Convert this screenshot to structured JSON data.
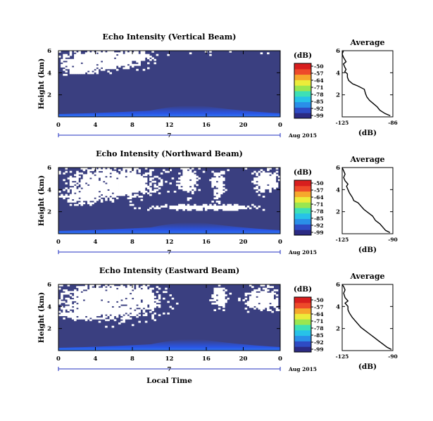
{
  "chart_data": [
    {
      "type": "heatmap",
      "title": "Echo Intensity (Vertical Beam)",
      "xlabel": "",
      "ylabel": "Height (km)",
      "x_ticks": [
        "0",
        "4",
        "8",
        "12",
        "16",
        "20",
        "0"
      ],
      "y_ticks": [
        "2",
        "4",
        "6"
      ],
      "xlim": [
        0,
        24
      ],
      "ylim": [
        0,
        6
      ],
      "date_label": "7",
      "date_suffix": "Aug 2015",
      "colorbar": {
        "title": "(dB)",
        "ticks": [
          "-50",
          "-57",
          "-64",
          "-71",
          "-78",
          "-85",
          "-92",
          "-99"
        ]
      },
      "average_profile": {
        "title": "Average",
        "xlabel": "(dB)",
        "x_ticks": [
          "-125",
          "-86"
        ],
        "y_ticks": [
          "2",
          "4",
          "6"
        ],
        "xlim": [
          -125,
          -86
        ],
        "ylim": [
          0,
          6
        ],
        "points": [
          [
            -88,
            0.1
          ],
          [
            -92,
            0.3
          ],
          [
            -96,
            0.6
          ],
          [
            -98,
            0.9
          ],
          [
            -101,
            1.2
          ],
          [
            -104,
            1.5
          ],
          [
            -106,
            1.8
          ],
          [
            -107,
            2.1
          ],
          [
            -108,
            2.5
          ],
          [
            -113,
            2.8
          ],
          [
            -117,
            3.0
          ],
          [
            -120,
            3.3
          ],
          [
            -121,
            3.6
          ],
          [
            -121,
            3.9
          ],
          [
            -123,
            4.1
          ],
          [
            -122,
            4.3
          ],
          [
            -123,
            4.5
          ],
          [
            -124,
            4.8
          ],
          [
            -122,
            5.0
          ],
          [
            -124,
            5.4
          ],
          [
            -125,
            5.7
          ],
          [
            -124,
            6.0
          ]
        ]
      }
    },
    {
      "type": "heatmap",
      "title": "Echo Intensity (Northward Beam)",
      "xlabel": "",
      "ylabel": "Height (km)",
      "x_ticks": [
        "0",
        "4",
        "8",
        "12",
        "16",
        "20",
        "0"
      ],
      "y_ticks": [
        "2",
        "4",
        "6"
      ],
      "xlim": [
        0,
        24
      ],
      "ylim": [
        0,
        6
      ],
      "date_label": "7",
      "date_suffix": "Aug 2015",
      "colorbar": {
        "title": "(dB)",
        "ticks": [
          "-50",
          "-57",
          "-64",
          "-71",
          "-78",
          "-85",
          "-92",
          "-99"
        ]
      },
      "average_profile": {
        "title": "Average",
        "xlabel": "(dB)",
        "x_ticks": [
          "-125",
          "-90"
        ],
        "y_ticks": [
          "2",
          "4",
          "6"
        ],
        "xlim": [
          -125,
          -90
        ],
        "ylim": [
          0,
          6
        ],
        "points": [
          [
            -92,
            0.1
          ],
          [
            -95,
            0.3
          ],
          [
            -97,
            0.6
          ],
          [
            -99,
            0.9
          ],
          [
            -102,
            1.2
          ],
          [
            -104,
            1.6
          ],
          [
            -107,
            1.9
          ],
          [
            -110,
            2.2
          ],
          [
            -112,
            2.5
          ],
          [
            -114,
            2.8
          ],
          [
            -117,
            3.0
          ],
          [
            -118,
            3.3
          ],
          [
            -120,
            3.7
          ],
          [
            -121,
            4.0
          ],
          [
            -122,
            4.3
          ],
          [
            -121,
            4.5
          ],
          [
            -123,
            4.8
          ],
          [
            -124,
            5.1
          ],
          [
            -123,
            5.4
          ],
          [
            -124,
            5.7
          ],
          [
            -125,
            6.0
          ]
        ]
      }
    },
    {
      "type": "heatmap",
      "title": "Echo Intensity (Eastward Beam)",
      "xlabel": "Local Time",
      "ylabel": "Height (km)",
      "x_ticks": [
        "0",
        "4",
        "8",
        "12",
        "16",
        "20",
        "0"
      ],
      "y_ticks": [
        "2",
        "4",
        "6"
      ],
      "xlim": [
        0,
        24
      ],
      "ylim": [
        0,
        6
      ],
      "date_label": "7",
      "date_suffix": "Aug 2015",
      "colorbar": {
        "title": "(dB)",
        "ticks": [
          "-50",
          "-57",
          "-64",
          "-71",
          "-78",
          "-85",
          "-92",
          "-99"
        ]
      },
      "average_profile": {
        "title": "Average",
        "xlabel": "(dB)",
        "x_ticks": [
          "-125",
          "-90"
        ],
        "y_ticks": [
          "2",
          "4",
          "6"
        ],
        "xlim": [
          -125,
          -90
        ],
        "ylim": [
          0,
          6
        ],
        "points": [
          [
            -91,
            0.1
          ],
          [
            -94,
            0.3
          ],
          [
            -97,
            0.6
          ],
          [
            -100,
            0.9
          ],
          [
            -103,
            1.2
          ],
          [
            -106,
            1.5
          ],
          [
            -109,
            1.8
          ],
          [
            -112,
            2.1
          ],
          [
            -114,
            2.4
          ],
          [
            -116,
            2.7
          ],
          [
            -118,
            3.0
          ],
          [
            -120,
            3.4
          ],
          [
            -121,
            3.7
          ],
          [
            -121,
            4.0
          ],
          [
            -123,
            4.3
          ],
          [
            -121,
            4.5
          ],
          [
            -123,
            4.8
          ],
          [
            -124,
            5.2
          ],
          [
            -123,
            5.5
          ],
          [
            -124,
            5.8
          ],
          [
            -125,
            6.0
          ]
        ]
      }
    }
  ],
  "colors": {
    "background_echo": "#3a3f80",
    "no_data": "#ffffff",
    "surface_echo": "#2a56e6",
    "colorbar": [
      "#2b2a83",
      "#2e4bc4",
      "#2a8fe8",
      "#27c2e8",
      "#3de0b6",
      "#9ae650",
      "#ecec3a",
      "#f6a82c",
      "#ee4a2a",
      "#d81e1e"
    ]
  }
}
